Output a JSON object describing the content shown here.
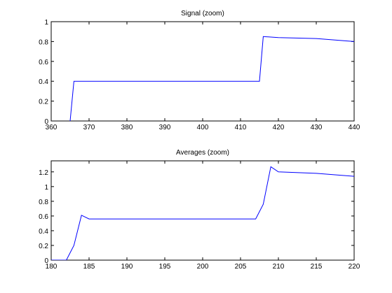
{
  "chart_data": [
    {
      "type": "line",
      "title": "Signal (zoom)",
      "xlabel": "",
      "ylabel": "",
      "xlim": [
        360,
        440
      ],
      "ylim": [
        0,
        1
      ],
      "grid": false,
      "xticks": [
        "360",
        "370",
        "380",
        "390",
        "400",
        "410",
        "420",
        "430",
        "440"
      ],
      "yticks": [
        "0",
        "0.2",
        "0.4",
        "0.6",
        "0.8",
        "1"
      ],
      "series": [
        {
          "color": "#0000ff",
          "x": [
            360,
            365,
            366,
            415,
            416,
            420,
            430,
            440
          ],
          "y": [
            -0.1,
            0.0,
            0.4,
            0.4,
            0.85,
            0.84,
            0.83,
            0.8
          ]
        }
      ]
    },
    {
      "type": "line",
      "title": "Averages (zoom)",
      "xlabel": "",
      "ylabel": "",
      "xlim": [
        180,
        220
      ],
      "ylim": [
        0,
        1.35
      ],
      "grid": false,
      "xticks": [
        "180",
        "185",
        "190",
        "195",
        "200",
        "205",
        "210",
        "215",
        "220"
      ],
      "yticks": [
        "0",
        "0.2",
        "0.4",
        "0.6",
        "0.8",
        "1",
        "1.2"
      ],
      "series": [
        {
          "color": "#0000ff",
          "x": [
            180,
            181,
            182,
            183,
            184,
            185,
            186,
            205,
            207,
            208,
            209,
            210,
            215,
            220
          ],
          "y": [
            0,
            0,
            0,
            0.2,
            0.61,
            0.56,
            0.56,
            0.56,
            0.56,
            0.76,
            1.27,
            1.2,
            1.18,
            1.14
          ]
        }
      ]
    }
  ]
}
